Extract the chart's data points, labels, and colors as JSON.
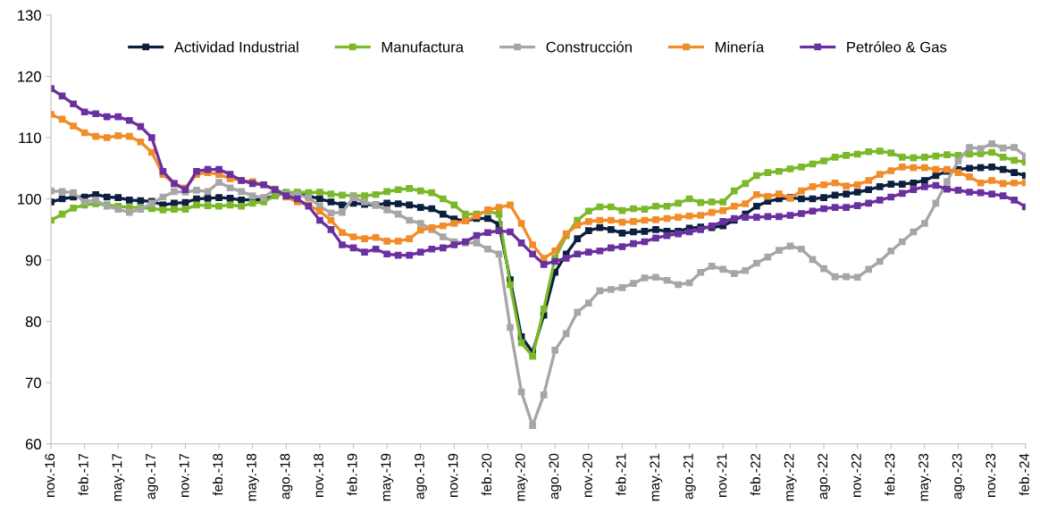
{
  "chart_data": {
    "type": "line",
    "categories": [
      "nov.-16",
      null,
      null,
      "feb.-17",
      null,
      null,
      "may.-17",
      null,
      null,
      "ago.-17",
      null,
      null,
      "nov.-17",
      null,
      null,
      "feb.-18",
      null,
      null,
      "may.-18",
      null,
      null,
      "ago.-18",
      null,
      null,
      "nov.-18",
      null,
      null,
      "feb.-19",
      null,
      null,
      "may.-19",
      null,
      null,
      "ago.-19",
      null,
      null,
      "nov.-19",
      null,
      null,
      "feb.-20",
      null,
      null,
      "may.-20",
      null,
      null,
      "ago.-20",
      null,
      null,
      "nov.-20",
      null,
      null,
      "feb.-21",
      null,
      null,
      "may.-21",
      null,
      null,
      "ago.-21",
      null,
      null,
      "nov.-21",
      null,
      null,
      "feb.-22",
      null,
      null,
      "may.-22",
      null,
      null,
      "ago.-22",
      null,
      null,
      "nov.-22",
      null,
      null,
      "feb.-23",
      null,
      null,
      "may.-23",
      null,
      null,
      "ago.-23",
      null,
      null,
      "nov.-23",
      null,
      null,
      "feb.-24"
    ],
    "series": [
      {
        "name": "Actividad Industrial",
        "color": "#0d1f3f",
        "values": [
          99.5,
          100,
          100.3,
          100.3,
          100.7,
          100.3,
          100.2,
          99.8,
          99.7,
          99.6,
          99,
          99.3,
          99.4,
          100,
          100.1,
          100.2,
          100.1,
          99.8,
          99.9,
          99.9,
          100.5,
          101,
          100.8,
          100.5,
          100,
          99.5,
          99,
          99.3,
          99.1,
          99,
          99.3,
          99.2,
          99,
          98.6,
          98.4,
          97.5,
          96.7,
          96.4,
          96.8,
          96.8,
          95.8,
          86.8,
          77.5,
          75,
          81,
          88,
          91,
          93.5,
          94.8,
          95.3,
          95,
          94.4,
          94.6,
          94.7,
          95,
          94.7,
          94.7,
          95.2,
          95.4,
          95.3,
          95.6,
          96.5,
          97.5,
          98.8,
          99.6,
          100,
          100.2,
          100,
          100,
          100.2,
          100.6,
          100.8,
          101.1,
          101.5,
          102,
          102.4,
          102.4,
          102.6,
          103,
          103.8,
          104.5,
          104.8,
          105,
          105.1,
          105.2,
          104.8,
          104.3,
          103.8
        ]
      },
      {
        "name": "Manufactura",
        "color": "#7bb82a",
        "values": [
          96.5,
          97.5,
          98.5,
          99,
          99.2,
          99,
          98.8,
          98.6,
          98.6,
          98.4,
          98.2,
          98.3,
          98.3,
          99,
          98.9,
          98.8,
          99,
          98.8,
          99.3,
          99.5,
          100.5,
          101,
          101.1,
          101,
          101.1,
          100.8,
          100.6,
          100.5,
          100.5,
          100.7,
          101.2,
          101.5,
          101.7,
          101.3,
          101,
          100,
          99,
          97.5,
          97.5,
          98,
          97.5,
          86,
          76.5,
          74.3,
          82,
          90.3,
          94,
          96.5,
          98,
          98.7,
          98.7,
          98.1,
          98.4,
          98.3,
          98.8,
          98.8,
          99.3,
          100,
          99.4,
          99.5,
          99.5,
          101.3,
          102.5,
          103.8,
          104.3,
          104.5,
          104.9,
          105.2,
          105.7,
          106.2,
          106.8,
          107.1,
          107.3,
          107.7,
          107.8,
          107.5,
          106.8,
          106.7,
          106.8,
          107,
          107.2,
          107.1,
          107.3,
          107.4,
          107.6,
          106.8,
          106.3,
          106
        ]
      },
      {
        "name": "Construcción",
        "color": "#a6a6a6",
        "values": [
          101.3,
          101.2,
          101,
          99.5,
          99.8,
          98.8,
          98.3,
          97.8,
          98.3,
          99.3,
          100.3,
          101.2,
          101.1,
          101.4,
          101.2,
          102.7,
          101.8,
          101.2,
          100.5,
          100.2,
          101.6,
          100.8,
          100.7,
          100.2,
          98.8,
          97.7,
          97.8,
          100.2,
          99.5,
          99,
          98.2,
          97.5,
          96.5,
          96,
          95,
          93.8,
          93,
          92.8,
          92.8,
          91.8,
          91,
          79,
          68.5,
          63,
          68,
          75.3,
          78,
          81.5,
          83,
          85,
          85.2,
          85.5,
          86.2,
          87.1,
          87.2,
          86.7,
          86,
          86.3,
          88,
          89,
          88.5,
          87.8,
          88.3,
          89.5,
          90.5,
          91.6,
          92.3,
          91.8,
          90.1,
          88.6,
          87.3,
          87.3,
          87.2,
          88.5,
          89.8,
          91.5,
          93,
          94.6,
          96,
          99.3,
          102.8,
          106.2,
          108.4,
          108.2,
          109,
          108.3,
          108.4,
          107
        ]
      },
      {
        "name": "Minería",
        "color": "#f28c28",
        "values": [
          113.8,
          113,
          111.9,
          110.8,
          110.2,
          110,
          110.3,
          110.2,
          109.3,
          107.6,
          104,
          102.5,
          101.8,
          104,
          104.3,
          104,
          103.3,
          103,
          102.8,
          102.3,
          101.5,
          100.3,
          99.5,
          99,
          98,
          96.5,
          94.5,
          93.8,
          93.5,
          93.7,
          93.1,
          93.1,
          93.5,
          94.9,
          95.3,
          95.6,
          96,
          96.4,
          97.2,
          98.2,
          98.6,
          99,
          96,
          92.5,
          90.3,
          91.5,
          94.3,
          95.7,
          96.3,
          96.5,
          96.5,
          96.2,
          96.3,
          96.5,
          96.6,
          96.8,
          97,
          97.2,
          97.3,
          97.8,
          98.1,
          98.8,
          99.2,
          100.7,
          100.4,
          100.8,
          100.1,
          101.3,
          102,
          102.3,
          102.6,
          102.1,
          102.3,
          103,
          104,
          104.6,
          105.2,
          105.1,
          105.1,
          104.8,
          104.8,
          104.3,
          103.6,
          102.6,
          103,
          102.5,
          102.6,
          102.6
        ]
      },
      {
        "name": "Petróleo & Gas",
        "color": "#6a30a0",
        "values": [
          118,
          116.8,
          115.5,
          114.2,
          113.9,
          113.4,
          113.4,
          112.8,
          111.8,
          110,
          104.5,
          102.5,
          101.5,
          104.5,
          104.8,
          104.8,
          104,
          103,
          102.5,
          102.3,
          101.5,
          100.5,
          100,
          98.8,
          96.5,
          95,
          92.5,
          92,
          91.3,
          91.8,
          91,
          90.8,
          90.8,
          91.3,
          91.8,
          92,
          92.5,
          93,
          94,
          94.5,
          94.8,
          94.6,
          92.8,
          91,
          89.3,
          89.8,
          90.3,
          91,
          91.3,
          91.5,
          92,
          92.2,
          92.7,
          93,
          93.6,
          94,
          94.3,
          94.6,
          95,
          95.6,
          96.3,
          96.8,
          97,
          97,
          97.1,
          97.1,
          97.3,
          97.6,
          98,
          98.4,
          98.6,
          98.6,
          98.9,
          99.3,
          99.8,
          100.3,
          100.9,
          101.5,
          102,
          102.2,
          101.6,
          101.4,
          101.1,
          101,
          100.8,
          100.5,
          99.8,
          98.7
        ]
      }
    ],
    "ylim": [
      60,
      130
    ],
    "yticks": [
      60,
      70,
      80,
      90,
      100,
      110,
      120,
      130
    ],
    "marker": "square",
    "line_style": "solid",
    "legend": "top",
    "grid": false
  }
}
